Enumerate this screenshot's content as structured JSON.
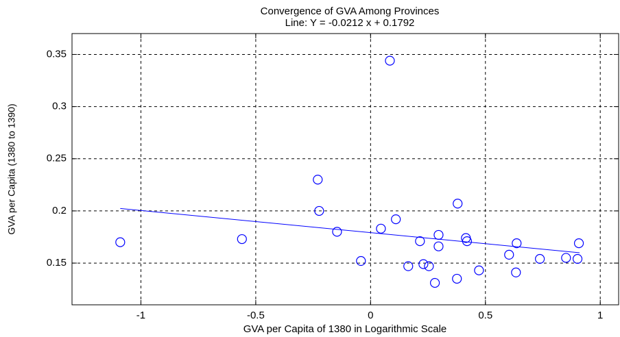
{
  "chart_data": {
    "type": "scatter",
    "title": "Convergence of GVA Among Provinces",
    "subtitle": "Line: Y = -0.0212 x + 0.1792",
    "x_label": "GVA per Capita of 1380 in Logarithmic Scale",
    "y_label": "GVA per Capita (1380 to 1390)",
    "x": [
      -1.09,
      -0.56,
      -0.23,
      -0.224,
      -0.146,
      -0.042,
      0.045,
      0.11,
      0.084,
      0.164,
      0.215,
      0.23,
      0.254,
      0.28,
      0.296,
      0.296,
      0.379,
      0.376,
      0.415,
      0.42,
      0.472,
      0.603,
      0.636,
      0.633,
      0.737,
      0.851,
      0.901,
      0.907
    ],
    "values": [
      0.17,
      0.173,
      0.23,
      0.2,
      0.18,
      0.152,
      0.183,
      0.192,
      0.344,
      0.147,
      0.171,
      0.149,
      0.147,
      0.131,
      0.177,
      0.166,
      0.207,
      0.135,
      0.174,
      0.171,
      0.143,
      0.158,
      0.169,
      0.141,
      0.154,
      0.155,
      0.154,
      0.169
    ],
    "color": "#0000ff",
    "fit_line": {
      "x": [
        -1.09,
        0.91
      ],
      "values": [
        0.2023,
        0.1599
      ],
      "color": "#0000ff"
    },
    "xlim": [
      -1.3,
      1.08
    ],
    "ylim": [
      0.11,
      0.37
    ],
    "xticks": [
      -1,
      -0.5,
      0,
      0.5,
      1
    ],
    "yticks": [
      0.15,
      0.2,
      0.25,
      0.3,
      0.35
    ],
    "grid": true
  }
}
